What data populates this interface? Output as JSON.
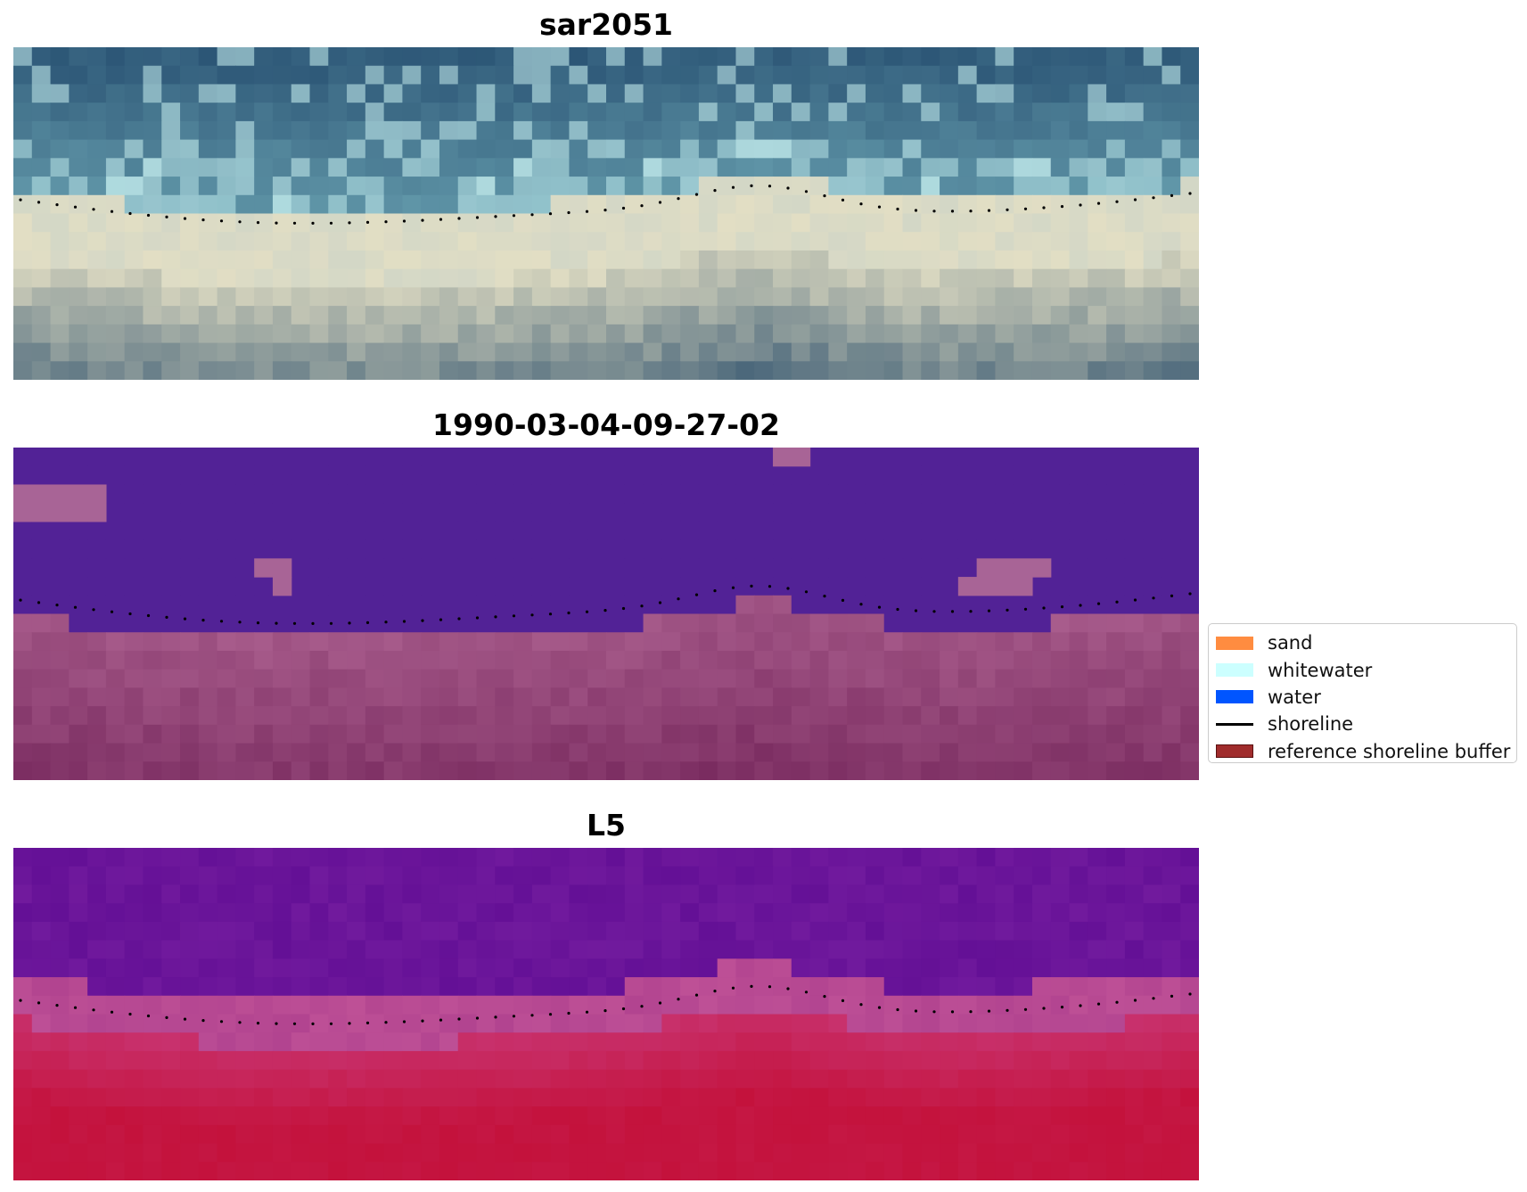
{
  "panels": [
    {
      "title": "sar2051"
    },
    {
      "title": "1990-03-04-09-27-02"
    },
    {
      "title": "L5"
    }
  ],
  "legend": {
    "items": [
      {
        "label": "sand",
        "color": "#ff8c40",
        "kind": "patch"
      },
      {
        "label": "whitewater",
        "color": "#ccffff",
        "kind": "patch"
      },
      {
        "label": "water",
        "color": "#0055ff",
        "kind": "patch"
      },
      {
        "label": "shoreline",
        "color": "#000000",
        "kind": "line"
      },
      {
        "label": "reference shoreline buffer",
        "color": "#a02c2c",
        "kind": "patch"
      }
    ]
  }
}
